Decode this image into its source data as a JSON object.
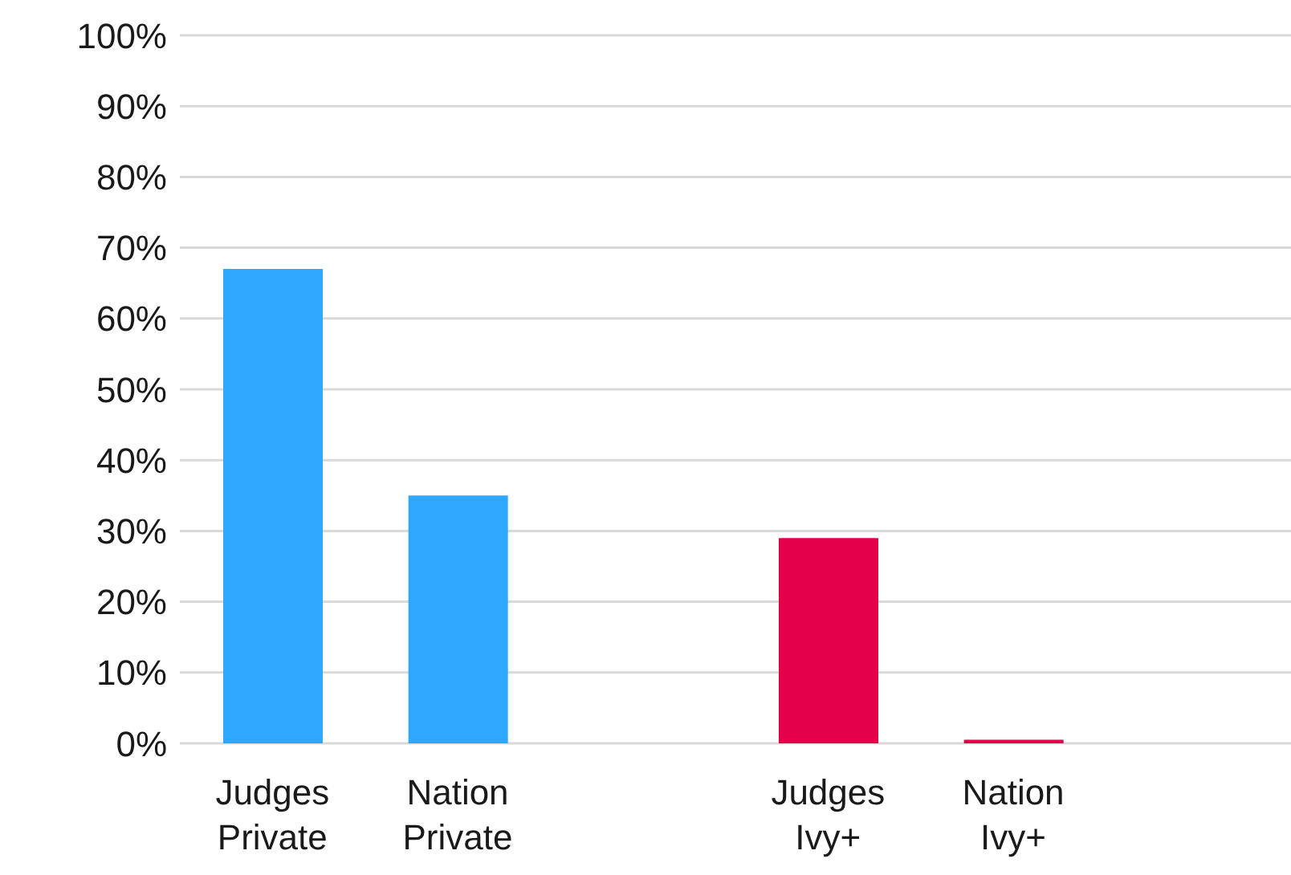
{
  "chart_data": {
    "type": "bar",
    "categories": [
      "Judges\nPrivate",
      "Nation\nPrivate",
      null,
      "Judges\nIvy+",
      "Nation\nIvy+",
      null
    ],
    "values": [
      67,
      35,
      null,
      29,
      0.5,
      null
    ],
    "colors": [
      "#2ea7ff",
      "#2ea7ff",
      "#2ea7ff",
      "#e4004b",
      "#e4004b",
      "#e4004b"
    ],
    "ylim": [
      0,
      100
    ],
    "yticks": [
      {
        "value": 0,
        "label": "0%"
      },
      {
        "value": 10,
        "label": "10%"
      },
      {
        "value": 20,
        "label": "20%"
      },
      {
        "value": 30,
        "label": "30%"
      },
      {
        "value": 40,
        "label": "40%"
      },
      {
        "value": 50,
        "label": "50%"
      },
      {
        "value": 60,
        "label": "60%"
      },
      {
        "value": 70,
        "label": "70%"
      },
      {
        "value": 80,
        "label": "80%"
      },
      {
        "value": 90,
        "label": "90%"
      },
      {
        "value": 100,
        "label": "100%"
      }
    ],
    "grid": "y",
    "legend": false
  }
}
